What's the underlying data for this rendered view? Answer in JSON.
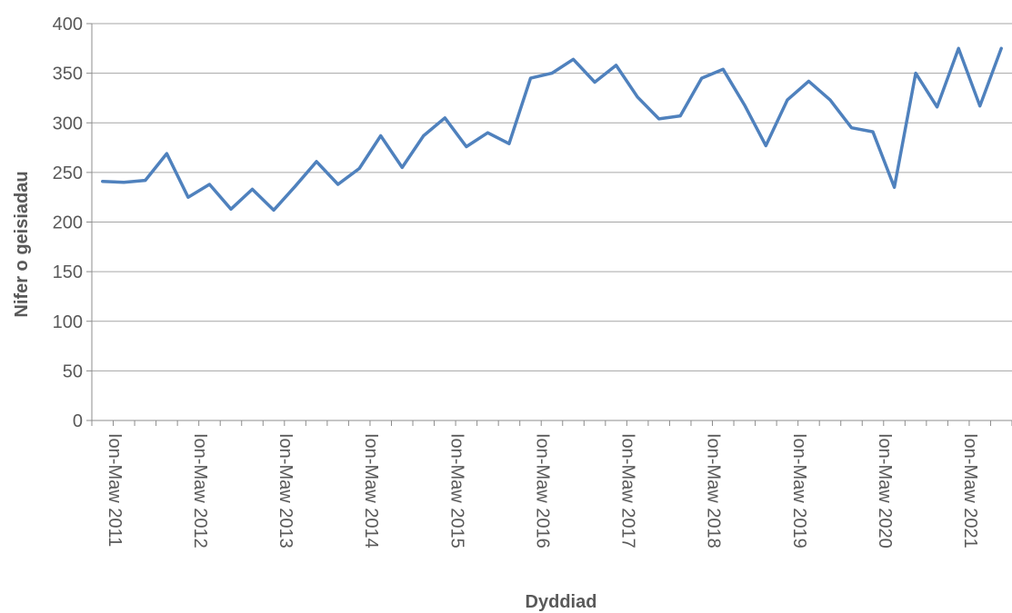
{
  "chart_data": {
    "type": "line",
    "xlabel": "Dyddiad",
    "ylabel": "Nifer o geisiadau",
    "ylim": [
      0,
      400
    ],
    "yticks": [
      0,
      50,
      100,
      150,
      200,
      250,
      300,
      350,
      400
    ],
    "grid": true,
    "x_tick_labels": [
      "Ion-Maw 2011",
      "Ion-Maw 2012",
      "Ion-Maw 2013",
      "Ion-Maw 2014",
      "Ion-Maw 2015",
      "Ion-Maw 2016",
      "Ion-Maw 2017",
      "Ion-Maw 2018",
      "Ion-Maw 2019",
      "Ion-Maw 2020",
      "Ion-Maw 2021"
    ],
    "series": [
      {
        "color": "#4f81bd",
        "values": [
          241,
          240,
          242,
          269,
          225,
          238,
          213,
          233,
          212,
          236,
          261,
          238,
          254,
          287,
          255,
          287,
          305,
          276,
          290,
          279,
          345,
          350,
          364,
          341,
          358,
          326,
          304,
          307,
          345,
          354,
          318,
          277,
          323,
          342,
          323,
          295,
          291,
          235,
          350,
          316,
          375,
          317,
          375
        ]
      }
    ]
  }
}
